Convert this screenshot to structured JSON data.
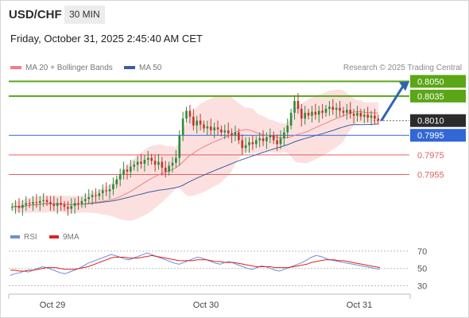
{
  "header": {
    "symbol": "USD/CHF",
    "timeframe": "30 MIN",
    "date": "Friday, October 31, 2025 2:45:40 AM CET"
  },
  "legend": {
    "ma20_label": "MA 20 + Bollinger Bands",
    "ma50_label": "MA 50",
    "source": "Research © 2025 Trading Central"
  },
  "rsi_legend": {
    "rsi_label": "RSI",
    "ma_label": "9MA"
  },
  "colors": {
    "candle_up": "#2e8b3a",
    "candle_down": "#c0392b",
    "ma20": "#f08080",
    "bollinger": "#fbd5d5",
    "ma50": "#3a5f9f",
    "resistance": "#5aa616",
    "support": "#e06060",
    "pivot": "#3367d6",
    "current": "#2b2b2b",
    "arrow": "#2f65b0",
    "rsi": "#6d8fd8",
    "rsi_ma": "#e02020"
  },
  "chart_data": [
    {
      "type": "candlestick",
      "title": "USD/CHF 30 MIN",
      "ylim": [
        0.7906,
        0.806
      ],
      "x_ticks": [
        "Oct 29",
        "Oct 30",
        "Oct 31"
      ],
      "levels": [
        {
          "value": 0.805,
          "label": "0.8050",
          "kind": "resistance"
        },
        {
          "value": 0.8035,
          "label": "0.8035",
          "kind": "resistance"
        },
        {
          "value": 0.801,
          "label": "0.8010",
          "kind": "current"
        },
        {
          "value": 0.7995,
          "label": "0.7995",
          "kind": "pivot"
        },
        {
          "value": 0.7975,
          "label": "0.7975",
          "kind": "support"
        },
        {
          "value": 0.7955,
          "label": "0.7955",
          "kind": "support"
        }
      ],
      "close": [
        0.7922,
        0.7923,
        0.7921,
        0.7924,
        0.7926,
        0.7925,
        0.7927,
        0.7926,
        0.7928,
        0.7929,
        0.7927,
        0.7925,
        0.7923,
        0.7926,
        0.7924,
        0.7922,
        0.792,
        0.7923,
        0.7926,
        0.7925,
        0.7928,
        0.793,
        0.7932,
        0.7934,
        0.7933,
        0.7936,
        0.7939,
        0.7938,
        0.794,
        0.7945,
        0.795,
        0.7955,
        0.796,
        0.7958,
        0.7963,
        0.7965,
        0.7968,
        0.7966,
        0.797,
        0.7972,
        0.7969,
        0.7965,
        0.7968,
        0.7962,
        0.7958,
        0.7964,
        0.7967,
        0.7972,
        0.7995,
        0.8012,
        0.802,
        0.8014,
        0.8005,
        0.801,
        0.8006,
        0.8002,
        0.8004,
        0.8,
        0.8003,
        0.8001,
        0.7998,
        0.8,
        0.7997,
        0.7995,
        0.7998,
        0.799,
        0.7982,
        0.7985,
        0.7988,
        0.7986,
        0.799,
        0.7992,
        0.7989,
        0.7993,
        0.7995,
        0.799,
        0.7986,
        0.7992,
        0.7998,
        0.8005,
        0.8018,
        0.803,
        0.8022,
        0.8012,
        0.8018,
        0.8015,
        0.8019,
        0.8016,
        0.802,
        0.8018,
        0.8022,
        0.8024,
        0.8021,
        0.8023,
        0.802,
        0.8018,
        0.8021,
        0.8017,
        0.8015,
        0.8018,
        0.8014,
        0.8016,
        0.8013,
        0.8015,
        0.8012,
        0.801
      ],
      "bollinger_upper": 0.8028,
      "bollinger_lower": 0.7993
    },
    {
      "type": "line",
      "title": "RSI",
      "ylim": [
        25,
        80
      ],
      "y_ticks": [
        70,
        50,
        30
      ],
      "series": [
        {
          "name": "RSI",
          "values": [
            42,
            44,
            45,
            47,
            46,
            48,
            50,
            52,
            51,
            49,
            47,
            45,
            44,
            46,
            48,
            50,
            53,
            56,
            58,
            60,
            62,
            64,
            66,
            65,
            63,
            61,
            60,
            62,
            64,
            66,
            68,
            66,
            64,
            62,
            60,
            58,
            56,
            55,
            57,
            59,
            61,
            63,
            62,
            60,
            58,
            56,
            55,
            57,
            58,
            56,
            54,
            52,
            50,
            49,
            51,
            53,
            52,
            50,
            48,
            47,
            49,
            51,
            53,
            55,
            57,
            60,
            63,
            65,
            64,
            62,
            60,
            59,
            58,
            57,
            56,
            55,
            54,
            53,
            52,
            51,
            50,
            49
          ]
        },
        {
          "name": "9MA",
          "values": [
            48,
            48,
            47,
            47,
            48,
            48,
            49,
            50,
            51,
            51,
            51,
            50,
            49,
            49,
            49,
            50,
            51,
            52,
            54,
            56,
            58,
            60,
            62,
            63,
            63,
            63,
            62,
            62,
            62,
            63,
            64,
            65,
            64,
            63,
            62,
            61,
            60,
            59,
            59,
            59,
            59,
            60,
            60,
            60,
            59,
            58,
            58,
            57,
            57,
            57,
            56,
            55,
            54,
            53,
            52,
            52,
            52,
            52,
            51,
            51,
            51,
            51,
            52,
            53,
            54,
            55,
            57,
            58,
            59,
            60,
            60,
            60,
            59,
            59,
            58,
            57,
            56,
            55,
            54,
            53,
            52,
            51
          ]
        }
      ]
    }
  ]
}
